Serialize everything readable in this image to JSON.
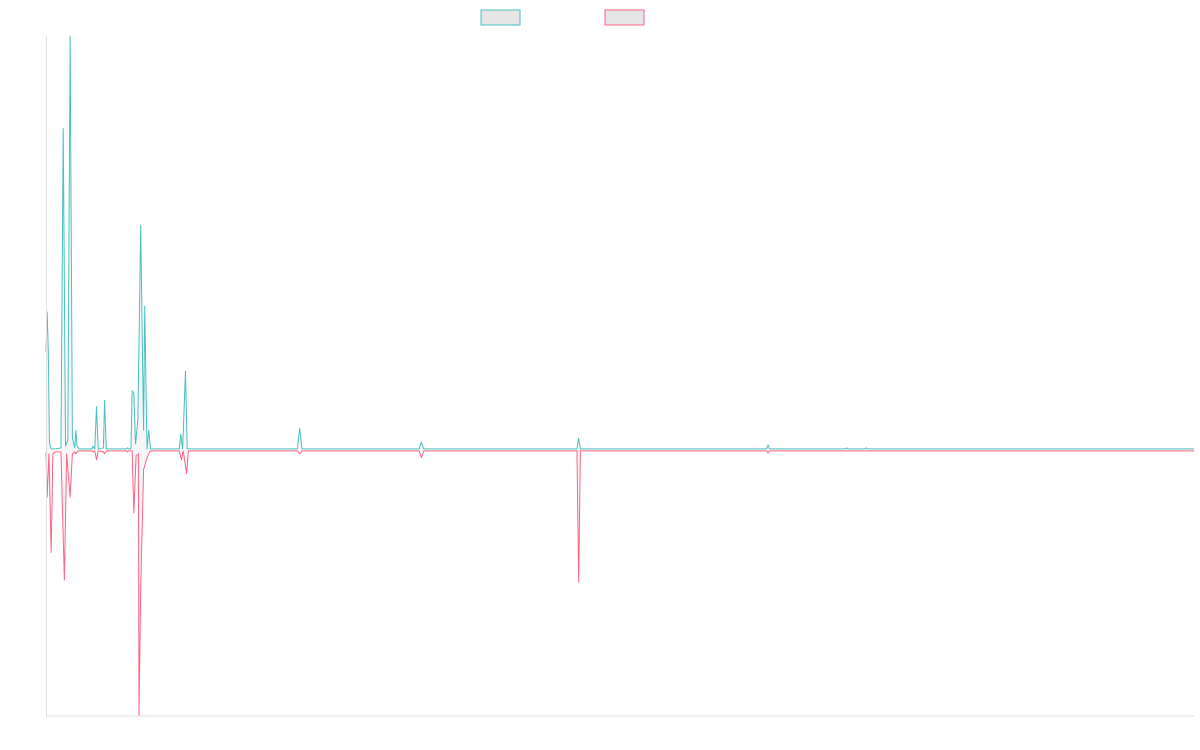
{
  "chart_data": {
    "type": "area",
    "title": "",
    "xlabel": "",
    "ylabel": "",
    "x_range": [
      0,
      200
    ],
    "ylim": [
      -13.5,
      21
    ],
    "grid": false,
    "legend_placement": "top-center",
    "series": [
      {
        "color": "#4bc0c0",
        "fill": "#e6e6e6",
        "points": [
          [
            0,
            5
          ],
          [
            0.2,
            7
          ],
          [
            0.4,
            5
          ],
          [
            0.6,
            0.4
          ],
          [
            0.8,
            0.1
          ],
          [
            1,
            0.05
          ],
          [
            1.6,
            0.05
          ],
          [
            2.6,
            0.1
          ],
          [
            3,
            16.3
          ],
          [
            3.4,
            0.2
          ],
          [
            3.8,
            0.5
          ],
          [
            4.2,
            21
          ],
          [
            4.6,
            0.6
          ],
          [
            5.0,
            0.1
          ],
          [
            5.2,
            1.0
          ],
          [
            5.4,
            0.2
          ],
          [
            5.8,
            0.05
          ],
          [
            8.0,
            0.05
          ],
          [
            8.2,
            0.2
          ],
          [
            8.5,
            0.05
          ],
          [
            8.8,
            2.2
          ],
          [
            9.1,
            0.05
          ],
          [
            10.0,
            0.1
          ],
          [
            10.2,
            2.5
          ],
          [
            10.5,
            0.05
          ],
          [
            14.0,
            0.05
          ],
          [
            14.2,
            0.1
          ],
          [
            14.4,
            0.05
          ],
          [
            14.8,
            0.05
          ],
          [
            15.0,
            3.0
          ],
          [
            15.3,
            2.9
          ],
          [
            15.6,
            0.3
          ],
          [
            16.0,
            1.5
          ],
          [
            16.5,
            11.4
          ],
          [
            16.8,
            5.0
          ],
          [
            17.0,
            1.0
          ],
          [
            17.2,
            7.3
          ],
          [
            17.6,
            0.05
          ],
          [
            17.9,
            1.0
          ],
          [
            18.2,
            0.05
          ],
          [
            23.2,
            0.05
          ],
          [
            23.5,
            0.8
          ],
          [
            23.8,
            0.05
          ],
          [
            24.3,
            4.0
          ],
          [
            24.6,
            0.05
          ],
          [
            43.8,
            0.05
          ],
          [
            44.2,
            1.1
          ],
          [
            44.6,
            0.05
          ],
          [
            65.0,
            0.05
          ],
          [
            65.4,
            0.4
          ],
          [
            65.8,
            0.05
          ],
          [
            92.5,
            0.05
          ],
          [
            92.8,
            0.6
          ],
          [
            93.1,
            0.05
          ],
          [
            125.5,
            0.05
          ],
          [
            125.8,
            0.25
          ],
          [
            126.1,
            0.05
          ],
          [
            139.3,
            0.05
          ],
          [
            139.5,
            0.1
          ],
          [
            139.7,
            0.05
          ],
          [
            142.7,
            0.05
          ],
          [
            142.9,
            0.1
          ],
          [
            143.1,
            0.05
          ],
          [
            200,
            0.05
          ]
        ]
      },
      {
        "color": "#ff6384",
        "fill": "#e6e6e6",
        "points": [
          [
            0,
            -0.1
          ],
          [
            0.2,
            -2.4
          ],
          [
            0.5,
            -0.2
          ],
          [
            0.9,
            -5.2
          ],
          [
            1.2,
            -0.2
          ],
          [
            1.6,
            -0.1
          ],
          [
            2.6,
            -0.1
          ],
          [
            3.2,
            -6.6
          ],
          [
            3.6,
            -0.2
          ],
          [
            4.2,
            -2.4
          ],
          [
            4.6,
            -0.2
          ],
          [
            5.0,
            -0.1
          ],
          [
            5.2,
            -0.2
          ],
          [
            5.6,
            -0.05
          ],
          [
            8.0,
            -0.05
          ],
          [
            8.2,
            -0.1
          ],
          [
            8.5,
            -0.05
          ],
          [
            8.8,
            -0.5
          ],
          [
            9.1,
            -0.05
          ],
          [
            10.0,
            -0.1
          ],
          [
            10.2,
            -0.2
          ],
          [
            10.5,
            -0.05
          ],
          [
            14.0,
            -0.05
          ],
          [
            14.2,
            -0.1
          ],
          [
            14.4,
            -0.05
          ],
          [
            15.0,
            -0.05
          ],
          [
            15.3,
            -3.2
          ],
          [
            15.7,
            -0.3
          ],
          [
            16.1,
            -0.2
          ],
          [
            16.2,
            -13.5
          ],
          [
            16.5,
            -7.0
          ],
          [
            17.0,
            -1.0
          ],
          [
            17.5,
            -0.5
          ],
          [
            17.9,
            -0.2
          ],
          [
            18.2,
            -0.05
          ],
          [
            23.2,
            -0.05
          ],
          [
            23.6,
            -0.5
          ],
          [
            23.9,
            -0.05
          ],
          [
            24.5,
            -1.2
          ],
          [
            24.8,
            -0.05
          ],
          [
            43.8,
            -0.05
          ],
          [
            44.2,
            -0.2
          ],
          [
            44.6,
            -0.05
          ],
          [
            65.0,
            -0.05
          ],
          [
            65.4,
            -0.4
          ],
          [
            65.8,
            -0.05
          ],
          [
            92.5,
            -0.05
          ],
          [
            92.8,
            -6.7
          ],
          [
            93.1,
            -0.05
          ],
          [
            125.5,
            -0.05
          ],
          [
            125.8,
            -0.15
          ],
          [
            126.1,
            -0.05
          ],
          [
            139.3,
            -0.05
          ],
          [
            139.5,
            -0.05
          ],
          [
            139.7,
            -0.05
          ],
          [
            200,
            -0.05
          ]
        ]
      }
    ]
  }
}
